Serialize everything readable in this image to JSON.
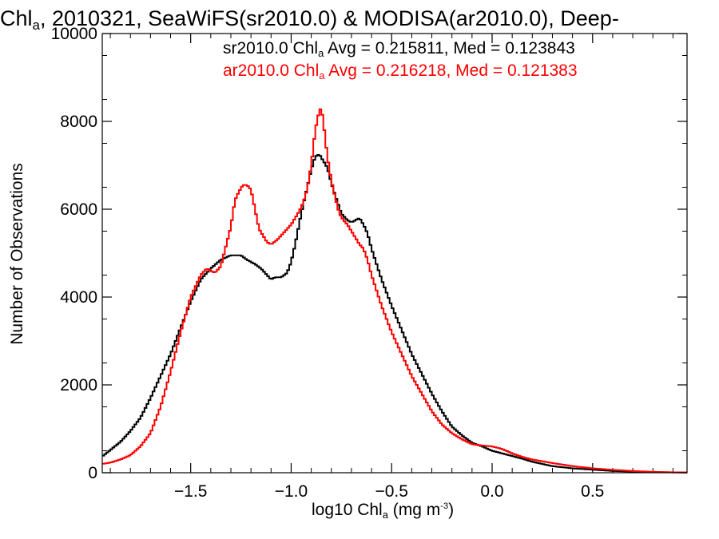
{
  "chart_data": {
    "type": "line",
    "title": {
      "text": "Chl",
      "subscript": "a",
      "rest": ", 2010321, SeaWiFS(sr2010.0) & MODISA(ar2010.0), Deep-"
    },
    "xlabel": {
      "text": "log10 Chl",
      "subscript": "a",
      "units": " (mg m",
      "exponent": "-3",
      "close": ")"
    },
    "ylabel": "Number of Observations",
    "xlim": [
      -1.94,
      0.97
    ],
    "ylim": [
      0,
      10000
    ],
    "x_ticks": [
      -1.5,
      -1.0,
      -0.5,
      0.0,
      0.5
    ],
    "x_tick_labels": [
      "−1.5",
      "−1.0",
      "−0.5",
      "0.0",
      "0.5"
    ],
    "y_ticks": [
      0,
      2000,
      4000,
      6000,
      8000,
      10000
    ],
    "y_tick_labels": [
      "0",
      "2000",
      "4000",
      "6000",
      "8000",
      "10000"
    ],
    "grid": false,
    "legend_position": "top-right",
    "series": [
      {
        "name": "sr2010.0",
        "color": "#000000",
        "stat_label": {
          "prefix": "sr2010.0 Chl",
          "subscript": "a",
          "stats": " Avg = 0.215811, Med = 0.123843"
        },
        "x": [
          -1.94,
          -1.85,
          -1.8,
          -1.75,
          -1.7,
          -1.65,
          -1.6,
          -1.55,
          -1.5,
          -1.45,
          -1.4,
          -1.35,
          -1.3,
          -1.25,
          -1.22,
          -1.18,
          -1.15,
          -1.1,
          -1.08,
          -1.05,
          -1.02,
          -1.0,
          -0.98,
          -0.95,
          -0.92,
          -0.9,
          -0.88,
          -0.86,
          -0.84,
          -0.82,
          -0.8,
          -0.78,
          -0.75,
          -0.72,
          -0.7,
          -0.68,
          -0.66,
          -0.64,
          -0.62,
          -0.6,
          -0.55,
          -0.5,
          -0.45,
          -0.4,
          -0.35,
          -0.3,
          -0.25,
          -0.2,
          -0.15,
          -0.1,
          -0.05,
          0.0,
          0.05,
          0.1,
          0.15,
          0.2,
          0.3,
          0.4,
          0.5,
          0.6,
          0.7,
          0.8,
          0.9,
          0.97
        ],
        "y": [
          370,
          700,
          950,
          1250,
          1700,
          2200,
          2700,
          3300,
          3900,
          4400,
          4650,
          4850,
          4950,
          4950,
          4850,
          4750,
          4650,
          4400,
          4450,
          4450,
          4550,
          4800,
          5200,
          5900,
          6500,
          6900,
          7200,
          7250,
          7100,
          6950,
          6600,
          6300,
          5900,
          5750,
          5700,
          5750,
          5800,
          5650,
          5450,
          5100,
          4400,
          3800,
          3250,
          2700,
          2250,
          1800,
          1400,
          1050,
          850,
          680,
          600,
          500,
          440,
          380,
          320,
          250,
          150,
          100,
          70,
          40,
          25,
          15,
          8,
          5
        ]
      },
      {
        "name": "ar2010.0",
        "color": "#ff0000",
        "stat_label": {
          "prefix": "ar2010.0 Chl",
          "subscript": "a",
          "stats": " Avg = 0.216218, Med = 0.121383"
        },
        "x": [
          -1.94,
          -1.9,
          -1.85,
          -1.8,
          -1.75,
          -1.7,
          -1.65,
          -1.6,
          -1.55,
          -1.5,
          -1.45,
          -1.42,
          -1.38,
          -1.35,
          -1.3,
          -1.28,
          -1.26,
          -1.24,
          -1.22,
          -1.2,
          -1.18,
          -1.16,
          -1.14,
          -1.12,
          -1.1,
          -1.07,
          -1.04,
          -1.0,
          -0.98,
          -0.96,
          -0.94,
          -0.92,
          -0.9,
          -0.88,
          -0.86,
          -0.85,
          -0.84,
          -0.82,
          -0.8,
          -0.78,
          -0.76,
          -0.74,
          -0.72,
          -0.7,
          -0.68,
          -0.66,
          -0.64,
          -0.62,
          -0.6,
          -0.55,
          -0.5,
          -0.45,
          -0.4,
          -0.35,
          -0.3,
          -0.25,
          -0.2,
          -0.15,
          -0.1,
          -0.05,
          0.0,
          0.05,
          0.1,
          0.15,
          0.2,
          0.3,
          0.4,
          0.5,
          0.6,
          0.7,
          0.8,
          0.9,
          0.97
        ],
        "y": [
          200,
          230,
          300,
          400,
          600,
          900,
          1500,
          2300,
          3200,
          4000,
          4500,
          4650,
          4550,
          4700,
          5600,
          6200,
          6400,
          6550,
          6550,
          6450,
          6000,
          5550,
          5400,
          5250,
          5200,
          5300,
          5450,
          5650,
          5800,
          5950,
          6150,
          6450,
          7000,
          7800,
          8250,
          8300,
          8000,
          7200,
          6650,
          6250,
          5900,
          5750,
          5650,
          5500,
          5350,
          5200,
          5100,
          4850,
          4500,
          3800,
          3200,
          2700,
          2200,
          1800,
          1400,
          1100,
          900,
          760,
          650,
          620,
          600,
          540,
          440,
          360,
          300,
          220,
          150,
          100,
          65,
          40,
          20,
          10,
          5
        ]
      }
    ]
  }
}
